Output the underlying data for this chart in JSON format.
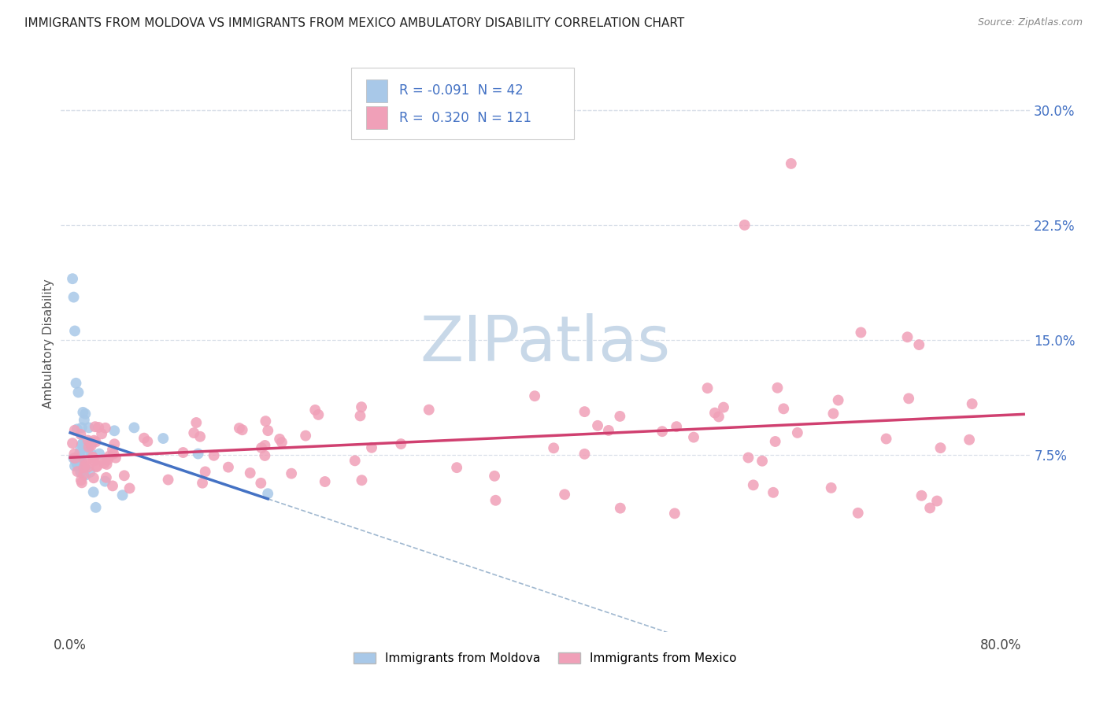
{
  "title": "IMMIGRANTS FROM MOLDOVA VS IMMIGRANTS FROM MEXICO AMBULATORY DISABILITY CORRELATION CHART",
  "source": "Source: ZipAtlas.com",
  "ylabel": "Ambulatory Disability",
  "ytick_labels": [
    "7.5%",
    "15.0%",
    "22.5%",
    "30.0%"
  ],
  "ytick_values": [
    0.075,
    0.15,
    0.225,
    0.3
  ],
  "xlim": [
    -0.008,
    0.825
  ],
  "ylim": [
    -0.04,
    0.335
  ],
  "legend_r_moldova": "-0.091",
  "legend_n_moldova": "42",
  "legend_r_mexico": "0.320",
  "legend_n_mexico": "121",
  "color_moldova": "#a8c8e8",
  "color_mexico": "#f0a0b8",
  "trendline_moldova_solid_color": "#4472c4",
  "trendline_mexico_solid_color": "#d04070",
  "trendline_moldova_dash_color": "#a0b8d0",
  "watermark_color": "#c8d8e8",
  "background_color": "#ffffff",
  "grid_color": "#d8dfe8",
  "legend_text_color": "#4472c4",
  "right_tick_color": "#4472c4"
}
